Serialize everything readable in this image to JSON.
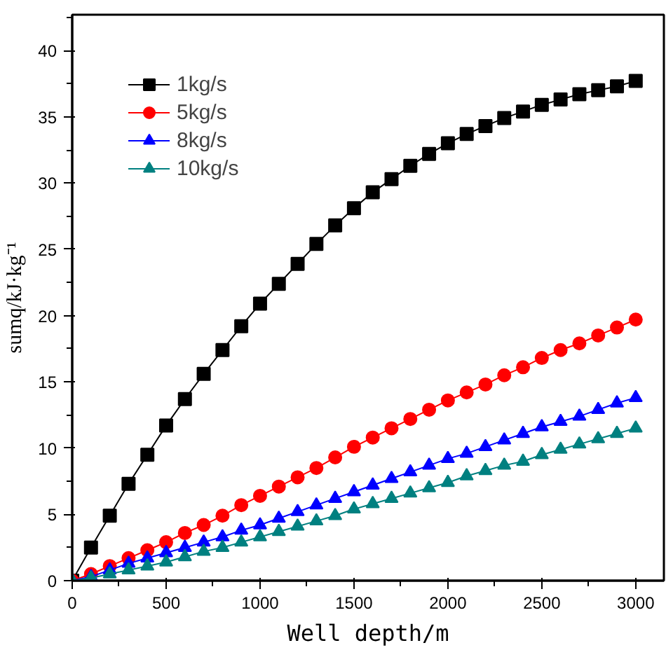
{
  "chart_data": {
    "type": "line",
    "xlabel": "Well depth/m",
    "ylabel": "sumq/kJ·kg⁻¹",
    "x": [
      0,
      100,
      200,
      300,
      400,
      500,
      600,
      700,
      800,
      900,
      1000,
      1100,
      1200,
      1300,
      1400,
      1500,
      1600,
      1700,
      1800,
      1900,
      2000,
      2100,
      2200,
      2300,
      2400,
      2500,
      2600,
      2700,
      2800,
      2900,
      3000
    ],
    "series": [
      {
        "name": "1kg/s",
        "color": "#000000",
        "marker": "square",
        "values": [
          0,
          2.5,
          4.9,
          7.3,
          9.5,
          11.7,
          13.7,
          15.6,
          17.4,
          19.2,
          20.9,
          22.4,
          23.9,
          25.4,
          26.8,
          28.1,
          29.3,
          30.3,
          31.3,
          32.2,
          33.0,
          33.7,
          34.3,
          34.9,
          35.4,
          35.9,
          36.3,
          36.7,
          37.0,
          37.3,
          37.7
        ]
      },
      {
        "name": "5kg/s",
        "color": "#ff0000",
        "marker": "circle",
        "values": [
          0,
          0.5,
          1.1,
          1.7,
          2.3,
          2.9,
          3.6,
          4.2,
          4.9,
          5.7,
          6.4,
          7.1,
          7.8,
          8.5,
          9.3,
          10.1,
          10.8,
          11.5,
          12.2,
          12.9,
          13.6,
          14.2,
          14.8,
          15.5,
          16.1,
          16.8,
          17.4,
          17.9,
          18.5,
          19.1,
          19.7
        ]
      },
      {
        "name": "8kg/s",
        "color": "#0000ff",
        "marker": "triangle",
        "values": [
          0,
          0.3,
          0.8,
          1.3,
          1.7,
          2.1,
          2.5,
          2.9,
          3.3,
          3.8,
          4.2,
          4.7,
          5.2,
          5.7,
          6.2,
          6.7,
          7.2,
          7.7,
          8.2,
          8.7,
          9.2,
          9.6,
          10.1,
          10.6,
          11.1,
          11.6,
          12.0,
          12.4,
          12.9,
          13.4,
          13.8
        ]
      },
      {
        "name": "10kg/s",
        "color": "#008080",
        "marker": "triangle",
        "values": [
          0,
          0.2,
          0.5,
          0.8,
          1.1,
          1.4,
          1.8,
          2.2,
          2.5,
          2.9,
          3.3,
          3.7,
          4.1,
          4.5,
          4.9,
          5.4,
          5.8,
          6.2,
          6.6,
          7.0,
          7.4,
          7.9,
          8.3,
          8.7,
          9.0,
          9.5,
          9.9,
          10.3,
          10.7,
          11.1,
          11.5
        ]
      }
    ],
    "xlim": [
      0,
      3150
    ],
    "ylim": [
      0,
      42.7
    ],
    "xticks": [
      0,
      500,
      1000,
      1500,
      2000,
      2500,
      3000
    ],
    "yticks": [
      0,
      5,
      10,
      15,
      20,
      25,
      30,
      35,
      40
    ],
    "grid": false,
    "legend": "top left",
    "line_style": "solid"
  }
}
